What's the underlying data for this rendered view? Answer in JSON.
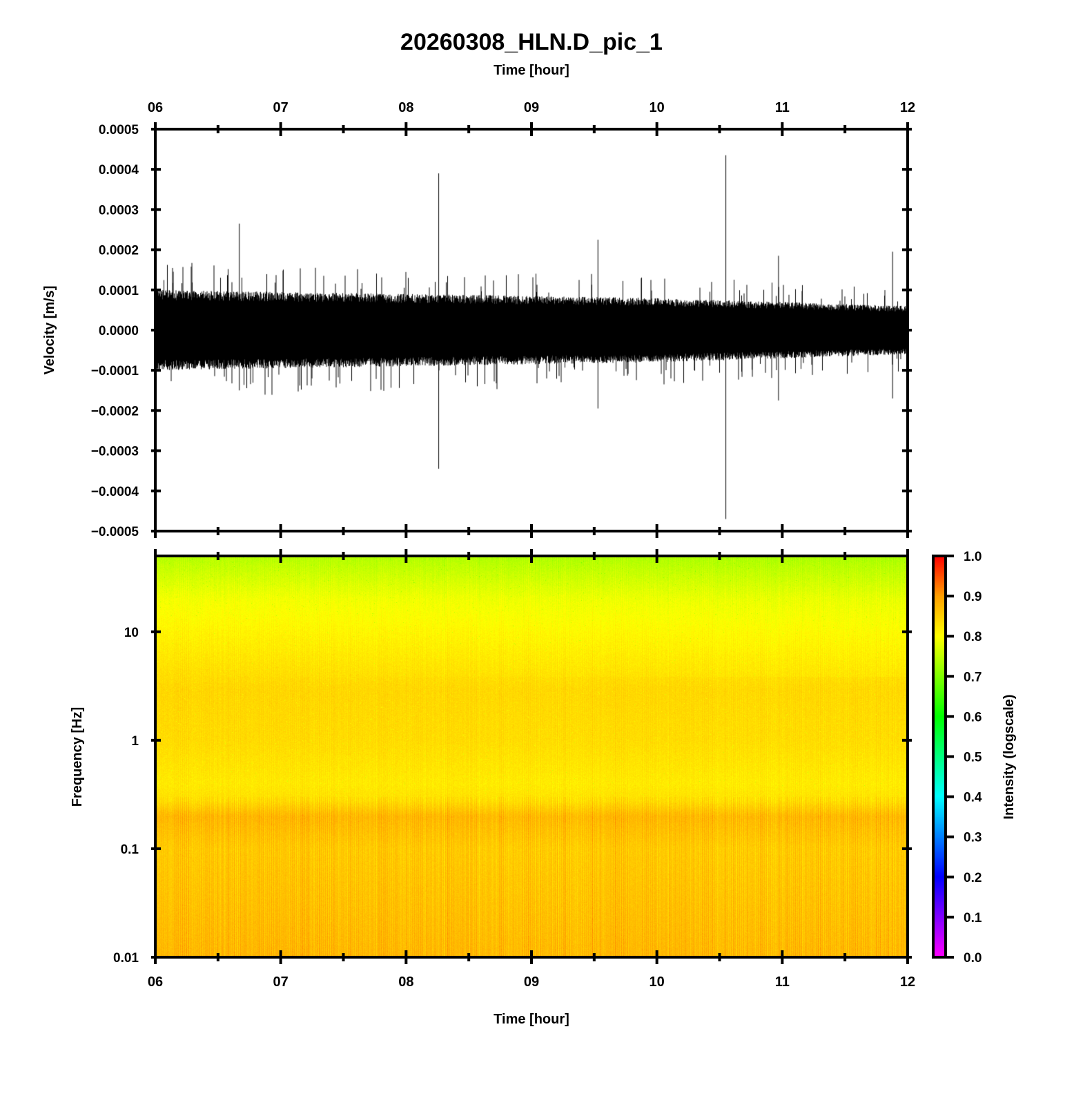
{
  "chart_data": [
    {
      "type": "line",
      "title": "20260308_HLN.D_pic_1",
      "xlabel": "Time [hour]",
      "ylabel": "Velocity [m/s]",
      "xlim": [
        6,
        12
      ],
      "ylim": [
        -0.0005,
        0.0005
      ],
      "xticks": [
        "06",
        "07",
        "08",
        "09",
        "10",
        "11",
        "12"
      ],
      "yticks": [
        "0.0005",
        "0.0004",
        "0.0003",
        "0.0002",
        "0.0001",
        "0.0000",
        "−0.0001",
        "−0.0002",
        "−0.0003",
        "−0.0004",
        "−0.0005"
      ],
      "noise_envelope": {
        "x": [
          6,
          7,
          8,
          9,
          10,
          11,
          12
        ],
        "amplitude": [
          0.0001,
          9.5e-05,
          9e-05,
          8.5e-05,
          8e-05,
          7e-05,
          6e-05
        ]
      },
      "spikes": [
        {
          "x": 6.67,
          "max": 0.000265,
          "min": -0.00015
        },
        {
          "x": 8.26,
          "max": 0.00039,
          "min": -0.000345
        },
        {
          "x": 9.53,
          "max": 0.000225,
          "min": -0.000195
        },
        {
          "x": 10.55,
          "max": 0.000435,
          "min": -0.00047
        },
        {
          "x": 10.97,
          "max": 0.000185,
          "min": -0.000175
        },
        {
          "x": 11.88,
          "max": 0.000195,
          "min": -0.00017
        }
      ]
    },
    {
      "type": "heatmap",
      "xlabel": "Time [hour]",
      "ylabel": "Frequency [Hz]",
      "xlim": [
        6,
        12
      ],
      "ylim": [
        0.01,
        50
      ],
      "yscale": "log",
      "xticks": [
        "06",
        "07",
        "08",
        "09",
        "10",
        "11",
        "12"
      ],
      "yticks": [
        "10",
        "1",
        "0.1",
        "0.01"
      ],
      "frequency_profile": {
        "freq": [
          0.01,
          0.03,
          0.1,
          0.2,
          0.28,
          0.4,
          1,
          3,
          10,
          20,
          50
        ],
        "intensity": [
          0.87,
          0.86,
          0.85,
          0.87,
          0.83,
          0.82,
          0.835,
          0.84,
          0.81,
          0.79,
          0.74
        ]
      },
      "colorbar": {
        "label": "Intensity (logscale)",
        "range": [
          0,
          1
        ],
        "ticks": [
          "0.0",
          "0.1",
          "0.2",
          "0.3",
          "0.4",
          "0.5",
          "0.6",
          "0.7",
          "0.8",
          "0.9",
          "1.0"
        ],
        "colormap": [
          "#ff00ff",
          "#8000ff",
          "#0000ff",
          "#0080ff",
          "#00ffff",
          "#00ff80",
          "#00ff00",
          "#80ff00",
          "#ffff00",
          "#ffa000",
          "#ff0000"
        ]
      }
    }
  ]
}
